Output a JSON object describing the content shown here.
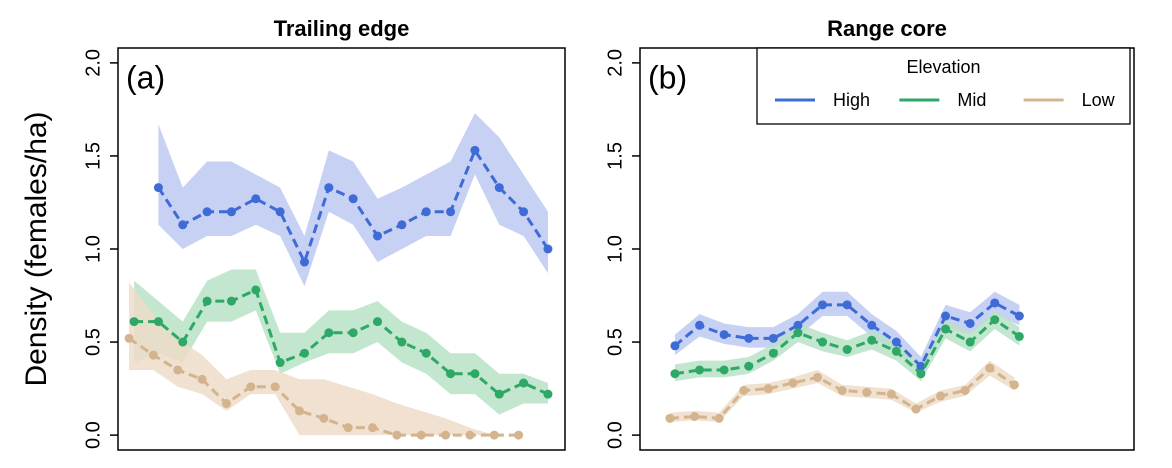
{
  "chart_data": [
    {
      "type": "line",
      "title": "Trailing edge",
      "panel_label": "(a)",
      "ylabel": "Density (females/ha)",
      "x": [
        1,
        2,
        3,
        4,
        5,
        6,
        7,
        8,
        9,
        10,
        11,
        12,
        13,
        14,
        15,
        16,
        17,
        18
      ],
      "xlim": [
        0.34,
        18.7
      ],
      "ylim": [
        -0.08,
        2.08
      ],
      "yticks": [
        {
          "value": 0,
          "label": "0.0"
        },
        {
          "value": 0.5,
          "label": "0.5"
        },
        {
          "value": 1,
          "label": "1.0"
        },
        {
          "value": 1.5,
          "label": "1.5"
        },
        {
          "value": 2,
          "label": "2.0"
        }
      ],
      "series": [
        {
          "name": "High",
          "color": "#3e6bd6",
          "band_color": "#bcc9f2",
          "values": [
            null,
            1.33,
            1.13,
            1.2,
            1.2,
            1.27,
            1.2,
            0.93,
            1.33,
            1.27,
            1.07,
            1.13,
            1.2,
            1.2,
            1.53,
            1.33,
            1.2,
            1.0
          ],
          "lower": [
            null,
            1.13,
            1.0,
            1.07,
            1.07,
            1.13,
            1.07,
            0.8,
            1.2,
            1.13,
            0.93,
            1.0,
            1.07,
            1.07,
            1.4,
            1.13,
            1.07,
            0.87
          ],
          "upper": [
            null,
            1.67,
            1.33,
            1.47,
            1.47,
            1.4,
            1.33,
            1.07,
            1.53,
            1.47,
            1.27,
            1.33,
            1.4,
            1.47,
            1.73,
            1.6,
            1.4,
            1.2
          ]
        },
        {
          "name": "Mid",
          "color": "#2ea866",
          "band_color": "#b7e2c6",
          "values": [
            0.61,
            0.61,
            0.5,
            0.72,
            0.72,
            0.78,
            0.39,
            0.44,
            0.55,
            0.55,
            0.61,
            0.5,
            0.44,
            0.33,
            0.33,
            0.22,
            0.28,
            0.22
          ],
          "lower": [
            0.39,
            0.44,
            0.39,
            0.61,
            0.61,
            0.67,
            0.33,
            0.39,
            0.44,
            0.44,
            0.5,
            0.39,
            0.33,
            0.22,
            0.22,
            0.11,
            0.17,
            0.17
          ],
          "upper": [
            0.83,
            0.72,
            0.61,
            0.83,
            0.89,
            0.89,
            0.55,
            0.55,
            0.67,
            0.67,
            0.72,
            0.61,
            0.55,
            0.44,
            0.44,
            0.33,
            0.33,
            0.28
          ]
        },
        {
          "name": "Low",
          "color": "#d4b48e",
          "band_color": "#eddcc8",
          "values": [
            0.52,
            0.43,
            0.35,
            0.3,
            0.17,
            0.26,
            0.26,
            0.13,
            0.09,
            0.04,
            0.04,
            0,
            0,
            0,
            0,
            0,
            0,
            null
          ],
          "lower": [
            0.35,
            0.35,
            0.26,
            0.22,
            0.13,
            0.22,
            0.22,
            0,
            0,
            0,
            0,
            0,
            0,
            0,
            0,
            0,
            0,
            null
          ],
          "upper": [
            0.82,
            0.65,
            0.52,
            0.43,
            0.3,
            0.35,
            0.35,
            0.3,
            0.3,
            0.26,
            0.22,
            0.17,
            0.13,
            0.09,
            0.04,
            0,
            0,
            null
          ]
        }
      ]
    },
    {
      "type": "line",
      "title": "Range core",
      "panel_label": "(b)",
      "x": [
        1,
        2,
        3,
        4,
        5,
        6,
        7,
        8,
        9,
        10,
        11,
        12,
        13,
        14,
        15
      ],
      "xlim": [
        -0.42,
        19.66
      ],
      "ylim": [
        -0.08,
        2.08
      ],
      "yticks": [
        {
          "value": 0,
          "label": "0.0"
        },
        {
          "value": 0.5,
          "label": "0.5"
        },
        {
          "value": 1,
          "label": "1.0"
        },
        {
          "value": 1.5,
          "label": "1.5"
        },
        {
          "value": 2,
          "label": "2.0"
        }
      ],
      "legend": "top-right",
      "legend_title": "Elevation",
      "series": [
        {
          "name": "High",
          "color": "#3e6bd6",
          "band_color": "#bcc9f2",
          "values": [
            0.48,
            0.59,
            0.54,
            0.52,
            0.52,
            0.59,
            0.7,
            0.7,
            0.59,
            0.5,
            0.37,
            0.64,
            0.6,
            0.71,
            0.64
          ],
          "lower": [
            0.43,
            0.53,
            0.49,
            0.47,
            0.47,
            0.53,
            0.64,
            0.64,
            0.53,
            0.45,
            0.33,
            0.58,
            0.54,
            0.65,
            0.59
          ],
          "upper": [
            0.54,
            0.65,
            0.6,
            0.58,
            0.58,
            0.65,
            0.77,
            0.77,
            0.65,
            0.56,
            0.42,
            0.7,
            0.66,
            0.77,
            0.7
          ]
        },
        {
          "name": "Mid",
          "color": "#2ea866",
          "band_color": "#b7e2c6",
          "values": [
            0.33,
            0.35,
            0.35,
            0.37,
            0.44,
            0.55,
            0.5,
            0.46,
            0.51,
            0.45,
            0.33,
            0.57,
            0.5,
            0.62,
            0.53
          ],
          "lower": [
            0.29,
            0.31,
            0.31,
            0.33,
            0.4,
            0.5,
            0.45,
            0.42,
            0.46,
            0.4,
            0.29,
            0.52,
            0.45,
            0.57,
            0.48
          ],
          "upper": [
            0.38,
            0.4,
            0.4,
            0.42,
            0.49,
            0.6,
            0.55,
            0.51,
            0.56,
            0.5,
            0.38,
            0.62,
            0.55,
            0.67,
            0.58
          ]
        },
        {
          "name": "Low",
          "color": "#d4b48e",
          "band_color": "#eddcc8",
          "values": [
            0.09,
            0.1,
            0.09,
            0.24,
            0.25,
            0.28,
            0.31,
            0.24,
            0.23,
            0.22,
            0.14,
            0.21,
            0.24,
            0.36,
            0.27
          ],
          "lower": [
            0.07,
            0.08,
            0.07,
            0.21,
            0.22,
            0.25,
            0.28,
            0.21,
            0.2,
            0.19,
            0.12,
            0.18,
            0.21,
            0.32,
            0.24
          ],
          "upper": [
            0.12,
            0.13,
            0.12,
            0.27,
            0.28,
            0.31,
            0.35,
            0.27,
            0.26,
            0.25,
            0.17,
            0.24,
            0.27,
            0.4,
            0.31
          ]
        }
      ]
    }
  ]
}
